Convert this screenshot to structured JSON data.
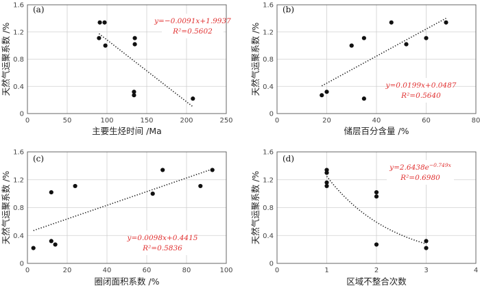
{
  "chart_data": [
    {
      "type": "scatter",
      "panel_label": "(a)",
      "xlabel": "主要生烃时间 /Ma",
      "ylabel": "天然气运聚系数 /%",
      "xlim": [
        0,
        250
      ],
      "ylim": [
        0,
        1.6
      ],
      "xticks": [
        "0",
        "50",
        "100",
        "150",
        "200",
        "250"
      ],
      "yticks": [
        "0",
        "0.4",
        "0.8",
        "1.2",
        "1.6"
      ],
      "x": [
        90,
        97,
        91,
        98,
        135,
        135,
        134,
        134,
        208
      ],
      "y": [
        1.11,
        1.34,
        1.34,
        1.0,
        1.11,
        1.02,
        0.32,
        0.27,
        0.22
      ],
      "trend": {
        "model": "linear",
        "slope": -0.0091,
        "intercept": 1.9937,
        "x_range": [
          90,
          208
        ]
      },
      "equation": "y=−0.0091x+1.9937",
      "r2": "R²=0.5602",
      "grid": true
    },
    {
      "type": "scatter",
      "panel_label": "(b)",
      "xlabel": "储层百分含量 /%",
      "ylabel": "天然气运聚系数 /%",
      "xlim": [
        0,
        80
      ],
      "ylim": [
        0,
        1.6
      ],
      "xticks": [
        "0",
        "20",
        "40",
        "60",
        "80"
      ],
      "yticks": [
        "0",
        "0.4",
        "0.8",
        "1.2",
        "1.6"
      ],
      "x": [
        18,
        20,
        30,
        35,
        35,
        46,
        52,
        60,
        68
      ],
      "y": [
        0.27,
        0.32,
        1.0,
        1.11,
        0.22,
        1.34,
        1.02,
        1.11,
        1.34
      ],
      "trend": {
        "model": "linear",
        "slope": 0.0199,
        "intercept": 0.0487,
        "x_range": [
          18,
          68
        ]
      },
      "equation": "y=0.0199x+0.0487",
      "r2": "R²=0.5640",
      "grid": true
    },
    {
      "type": "scatter",
      "panel_label": "(c)",
      "xlabel": "圈闭面积系数 /%",
      "ylabel": "天然气运聚系数 /%",
      "xlim": [
        0,
        100
      ],
      "ylim": [
        0,
        1.6
      ],
      "xticks": [
        "0",
        "20",
        "40",
        "60",
        "80",
        "100"
      ],
      "yticks": [
        "0",
        "0.4",
        "0.8",
        "1.2",
        "1.6"
      ],
      "x": [
        3,
        12,
        12,
        14,
        24,
        63,
        68,
        87,
        93
      ],
      "y": [
        0.22,
        1.02,
        0.32,
        0.27,
        1.11,
        1.0,
        1.34,
        1.11,
        1.34
      ],
      "trend": {
        "model": "linear",
        "slope": 0.0098,
        "intercept": 0.4415,
        "x_range": [
          3,
          93
        ]
      },
      "equation": "y=0.0098x+0.4415",
      "r2": "R²=0.5836",
      "grid": true
    },
    {
      "type": "scatter",
      "panel_label": "(d)",
      "xlabel": "区域不整合次数",
      "ylabel": "天然气运聚系数 /%",
      "xlim": [
        0,
        4
      ],
      "ylim": [
        0,
        1.6
      ],
      "xticks": [
        "0",
        "1",
        "2",
        "3",
        "4"
      ],
      "yticks": [
        "0",
        "0.4",
        "0.8",
        "1.2",
        "1.6"
      ],
      "x": [
        1,
        1,
        1,
        1,
        2,
        2,
        2,
        3,
        3
      ],
      "y": [
        1.34,
        1.3,
        1.16,
        1.11,
        1.02,
        0.96,
        0.27,
        0.32,
        0.22
      ],
      "trend": {
        "model": "exponential",
        "a": 2.6438,
        "b": -0.749,
        "x_range": [
          1,
          3
        ]
      },
      "equation": "y=2.6438e",
      "equation_exponent": "−0.749x",
      "r2": "R²=0.6980",
      "grid": true
    }
  ]
}
